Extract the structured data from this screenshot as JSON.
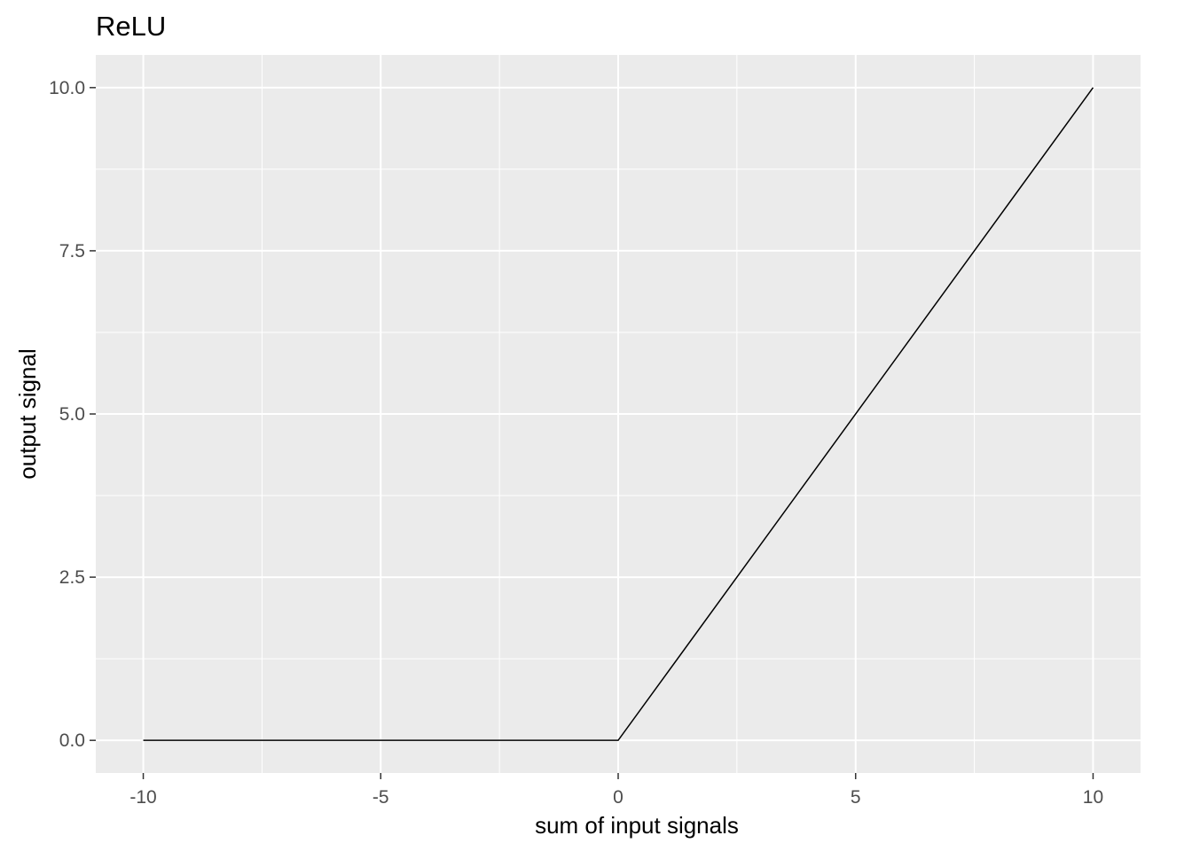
{
  "chart_data": {
    "type": "line",
    "title": "ReLU",
    "xlabel": "sum of input signals",
    "ylabel": "output signal",
    "xlim": [
      -11,
      11
    ],
    "ylim": [
      -0.5,
      10.5
    ],
    "x_ticks": [
      -10,
      -5,
      0,
      5,
      10
    ],
    "x_tick_labels": [
      "-10",
      "-5",
      "0",
      "5",
      "10"
    ],
    "y_ticks": [
      0,
      2.5,
      5,
      7.5,
      10
    ],
    "y_tick_labels": [
      "0.0",
      "2.5",
      "5.0",
      "7.5",
      "10.0"
    ],
    "grid": true,
    "background": "#ebebeb",
    "grid_color": "#ffffff",
    "line_color": "#000000",
    "series": [
      {
        "x": [
          -10,
          0,
          10
        ],
        "y": [
          0,
          0,
          10
        ]
      }
    ]
  }
}
